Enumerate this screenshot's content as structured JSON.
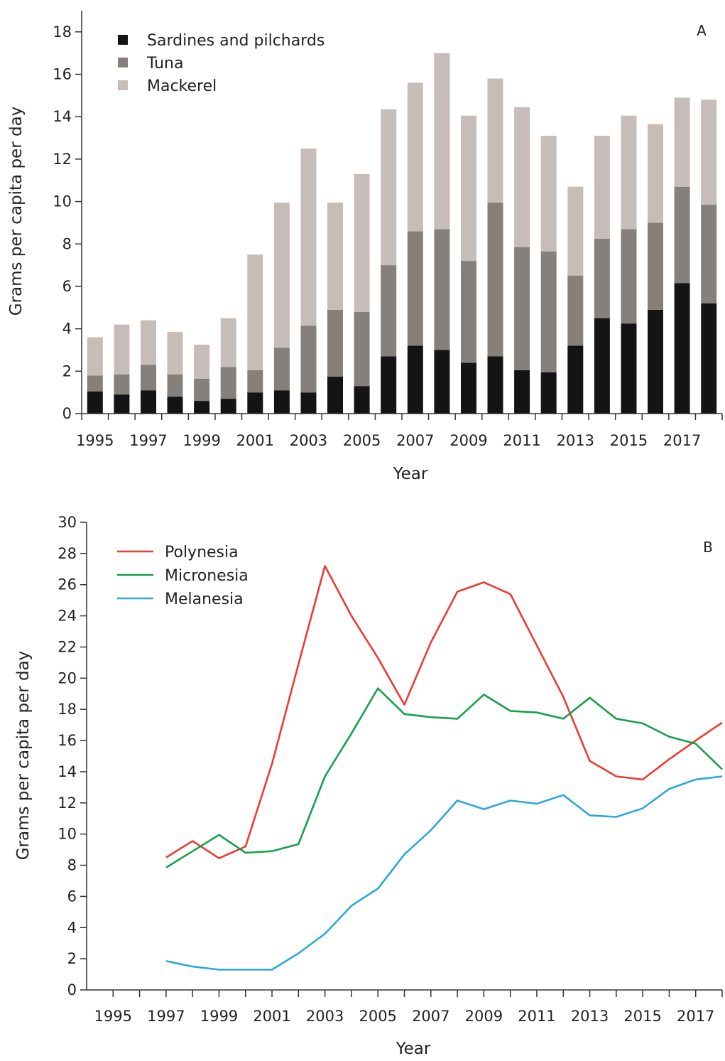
{
  "chart_data": [
    {
      "type": "bar",
      "stacked": true,
      "panel_label": "A",
      "xlabel": "Year",
      "ylabel": "Grams per capita per day",
      "ylim": [
        0,
        19
      ],
      "yticks": [
        0,
        2,
        4,
        6,
        8,
        10,
        12,
        14,
        16,
        18
      ],
      "categories": [
        "1995",
        "1996",
        "1997",
        "1998",
        "1999",
        "2000",
        "2001",
        "2002",
        "2003",
        "2004",
        "2005",
        "2006",
        "2007",
        "2008",
        "2009",
        "2010",
        "2011",
        "2012",
        "2013",
        "2014",
        "2015",
        "2016",
        "2017",
        "2018"
      ],
      "xtick_labels": [
        "1995",
        "1997",
        "1999",
        "2001",
        "2003",
        "2005",
        "2007",
        "2009",
        "2011",
        "2013",
        "2015",
        "2017"
      ],
      "legend_position": "top-left",
      "series": [
        {
          "name": "Sardines and pilchards",
          "color": "#141414",
          "values": [
            1.05,
            0.9,
            1.1,
            0.8,
            0.6,
            0.7,
            1.0,
            1.1,
            1.0,
            1.75,
            1.3,
            2.7,
            3.2,
            3.0,
            2.4,
            2.7,
            2.05,
            1.95,
            3.2,
            4.5,
            4.25,
            4.9,
            6.15,
            5.2
          ]
        },
        {
          "name": "Tuna",
          "color": "#85807c",
          "values": [
            0.75,
            0.95,
            1.2,
            1.05,
            1.05,
            1.5,
            1.05,
            2.0,
            3.15,
            3.15,
            3.5,
            4.3,
            5.4,
            5.7,
            4.8,
            7.25,
            5.8,
            5.7,
            3.3,
            3.75,
            4.45,
            4.1,
            4.55,
            4.65
          ]
        },
        {
          "name": "Mackerel",
          "color": "#c7bdb8",
          "values": [
            1.8,
            2.35,
            2.1,
            2.0,
            1.6,
            2.3,
            5.45,
            6.85,
            8.35,
            5.05,
            6.5,
            7.35,
            7.0,
            8.3,
            6.85,
            5.85,
            6.6,
            5.45,
            4.2,
            4.85,
            5.35,
            4.65,
            4.2,
            4.95
          ]
        }
      ]
    },
    {
      "type": "line",
      "panel_label": "B",
      "xlabel": "Year",
      "ylabel": "Grams per capita per day",
      "ylim": [
        0,
        30
      ],
      "yticks": [
        0,
        2,
        4,
        6,
        8,
        10,
        12,
        14,
        16,
        18,
        20,
        22,
        24,
        26,
        28,
        30
      ],
      "x": [
        1997,
        1998,
        1999,
        2000,
        2001,
        2002,
        2003,
        2004,
        2005,
        2006,
        2007,
        2008,
        2009,
        2010,
        2011,
        2012,
        2013,
        2014,
        2015,
        2016,
        2017,
        2018
      ],
      "xlim": [
        1994,
        2018
      ],
      "xtick_labels": [
        "1995",
        "1997",
        "1999",
        "2001",
        "2003",
        "2005",
        "2007",
        "2009",
        "2011",
        "2013",
        "2015",
        "2017"
      ],
      "legend_position": "top-left",
      "series": [
        {
          "name": "Polynesia",
          "color": "#ee3a32",
          "values": [
            8.5,
            9.55,
            8.45,
            9.2,
            14.5,
            20.9,
            27.2,
            24.0,
            21.3,
            18.3,
            22.3,
            25.55,
            26.15,
            25.4,
            22.1,
            18.8,
            14.7,
            13.7,
            13.5,
            14.8,
            16.0,
            17.15
          ]
        },
        {
          "name": "Micronesia",
          "color": "#16a04b",
          "values": [
            7.85,
            8.9,
            9.95,
            8.8,
            8.9,
            9.35,
            13.7,
            16.45,
            19.35,
            17.7,
            17.5,
            17.4,
            18.95,
            17.9,
            17.8,
            17.4,
            18.75,
            17.4,
            17.1,
            16.25,
            15.8,
            14.15
          ]
        },
        {
          "name": "Melanesia",
          "color": "#2ea8d8",
          "values": [
            1.85,
            1.5,
            1.3,
            1.3,
            1.3,
            2.35,
            3.6,
            5.4,
            6.5,
            8.7,
            10.25,
            12.15,
            11.6,
            12.15,
            11.95,
            12.5,
            11.2,
            11.1,
            11.65,
            12.9,
            13.5,
            13.7
          ]
        }
      ]
    }
  ]
}
